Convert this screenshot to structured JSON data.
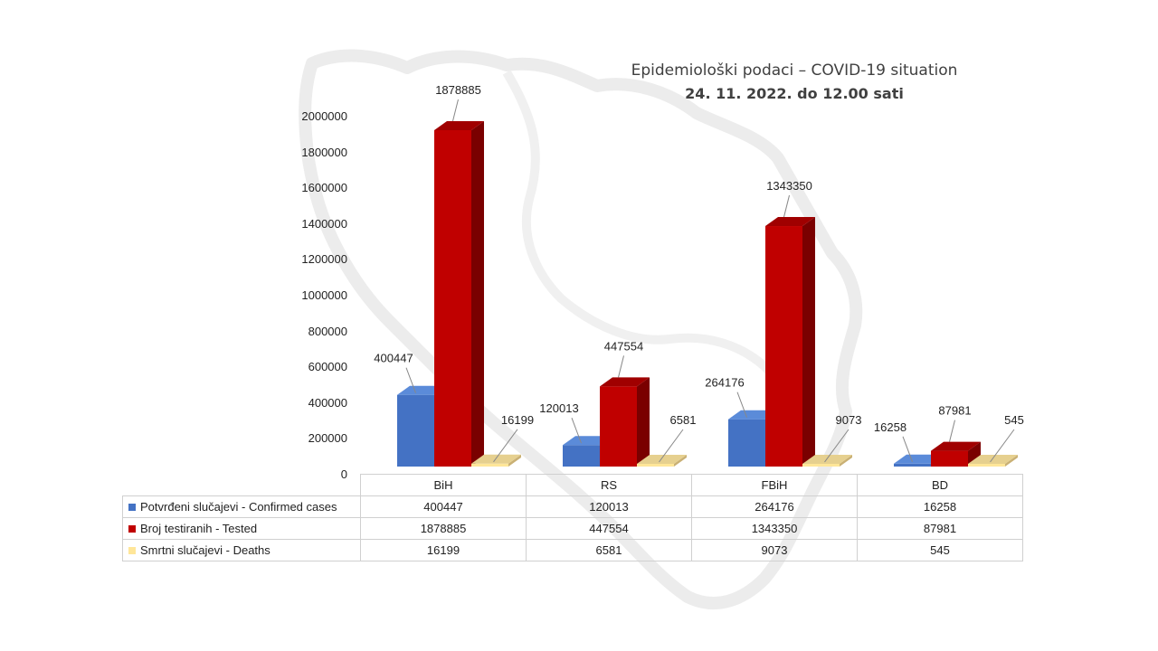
{
  "title": {
    "line1": "Epidemiološki podaci – COVID-19 situation",
    "line2": "24. 11. 2022. do 12.00 sati"
  },
  "colors": {
    "confirmed": "#4472C4",
    "tested": "#C00000",
    "deaths": "#FFE699"
  },
  "chart_data": {
    "type": "bar",
    "categories": [
      "BiH",
      "RS",
      "FBiH",
      "BD"
    ],
    "series": [
      {
        "name": "Potvrđeni slučajevi - Confirmed cases",
        "values": [
          400447,
          120013,
          264176,
          16258
        ]
      },
      {
        "name": "Broj testiranih - Tested",
        "values": [
          1878885,
          447554,
          1343350,
          87981
        ]
      },
      {
        "name": "Smrtni slučajevi - Deaths",
        "values": [
          16199,
          6581,
          9073,
          545
        ]
      }
    ],
    "ylim": [
      0,
      2000000
    ],
    "yticks": [
      "0",
      "200000",
      "400000",
      "600000",
      "800000",
      "1000000",
      "1200000",
      "1400000",
      "1600000",
      "1800000",
      "2000000"
    ],
    "grid": false,
    "legend": "data table below chart"
  },
  "table": {
    "columns": [
      "BiH",
      "RS",
      "FBiH",
      "BD"
    ],
    "rows": [
      {
        "label": "Potvrđeni slučajevi - Confirmed cases",
        "values": [
          "400447",
          "120013",
          "264176",
          "16258"
        ]
      },
      {
        "label": "Broj testiranih - Tested",
        "values": [
          "1878885",
          "447554",
          "1343350",
          "87981"
        ]
      },
      {
        "label": "Smrtni slučajevi - Deaths",
        "values": [
          "16199",
          "6581",
          "9073",
          "545"
        ]
      }
    ]
  }
}
